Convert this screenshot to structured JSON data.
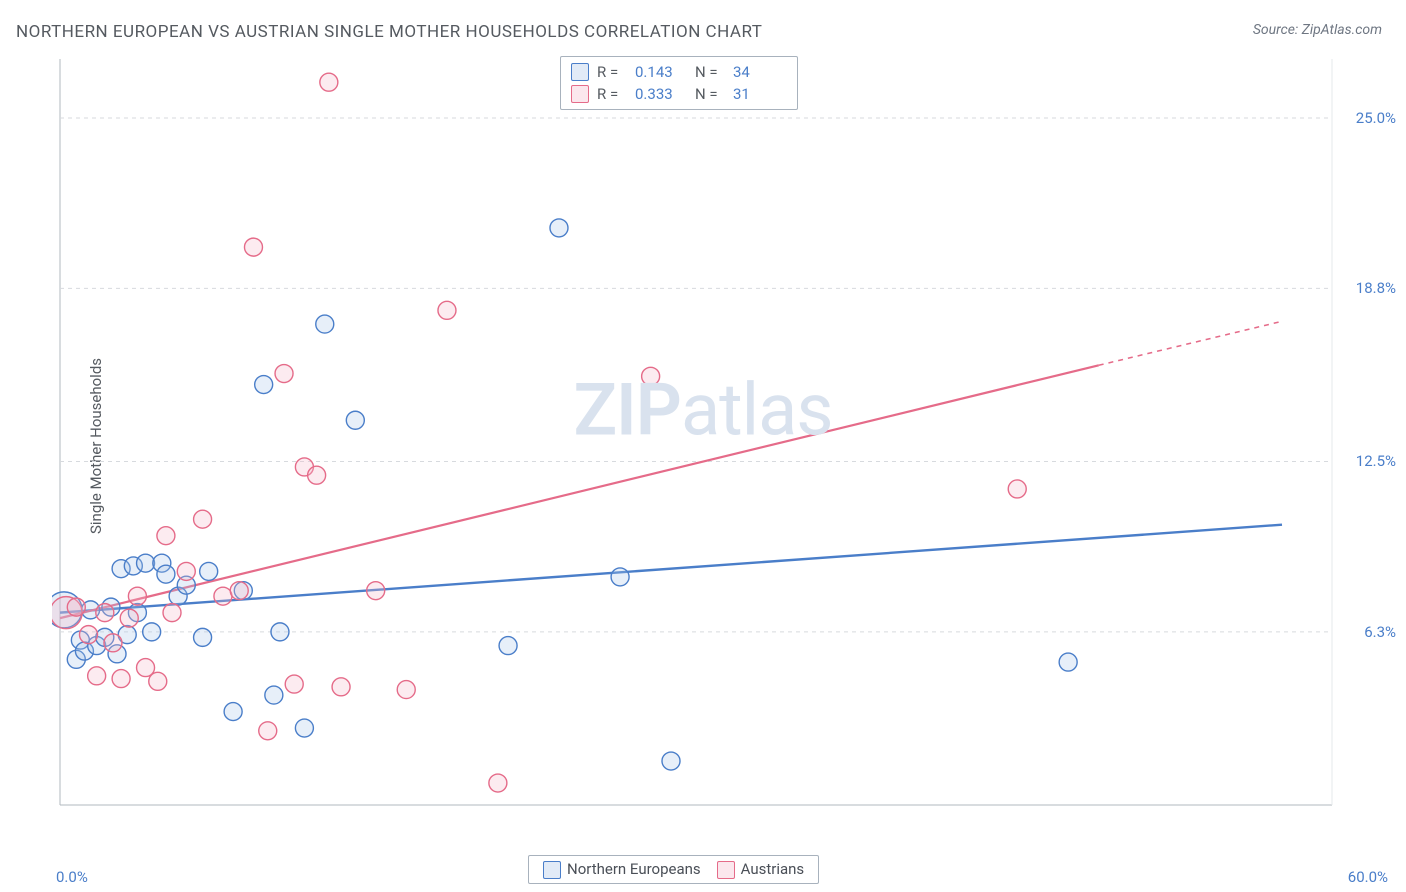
{
  "title": "NORTHERN EUROPEAN VS AUSTRIAN SINGLE MOTHER HOUSEHOLDS CORRELATION CHART",
  "source": "Source: ZipAtlas.com",
  "ylabel": "Single Mother Households",
  "watermark": {
    "bold": "ZIP",
    "rest": "atlas"
  },
  "chart": {
    "type": "scatter",
    "background_color": "#ffffff",
    "grid_color": "#d7dade",
    "axis_color": "#b2b8bf",
    "xlim": [
      0,
      60
    ],
    "ylim": [
      0,
      27
    ],
    "xticks": [
      {
        "value": 0,
        "label": "0.0%",
        "pos": "left"
      },
      {
        "value": 60,
        "label": "60.0%",
        "pos": "right"
      }
    ],
    "yticks": [
      {
        "value": 6.3,
        "label": "6.3%"
      },
      {
        "value": 12.5,
        "label": "12.5%"
      },
      {
        "value": 18.8,
        "label": "18.8%"
      },
      {
        "value": 25.0,
        "label": "25.0%"
      }
    ],
    "marker_radius": 9,
    "marker_fill_opacity": 0.28,
    "marker_stroke_width": 1.4,
    "series": [
      {
        "name": "Northern Europeans",
        "color_stroke": "#4a7ec9",
        "color_fill": "#a8c4e8",
        "r_value": "0.143",
        "n_value": "34",
        "trend": {
          "x1": 0,
          "y1": 7.0,
          "x2": 60,
          "y2": 10.2,
          "width": 2.4
        },
        "points": [
          [
            0.2,
            7.1,
            18
          ],
          [
            0.8,
            5.3
          ],
          [
            1.0,
            6.0
          ],
          [
            1.2,
            5.6
          ],
          [
            1.5,
            7.1
          ],
          [
            1.8,
            5.8
          ],
          [
            2.2,
            6.1
          ],
          [
            2.5,
            7.2
          ],
          [
            2.8,
            5.5
          ],
          [
            3.0,
            8.6
          ],
          [
            3.3,
            6.2
          ],
          [
            3.6,
            8.7
          ],
          [
            3.8,
            7.0
          ],
          [
            4.2,
            8.8
          ],
          [
            4.5,
            6.3
          ],
          [
            5.0,
            8.8
          ],
          [
            5.2,
            8.4
          ],
          [
            5.8,
            7.6
          ],
          [
            6.2,
            8.0
          ],
          [
            7.0,
            6.1
          ],
          [
            7.3,
            8.5
          ],
          [
            8.5,
            3.4
          ],
          [
            9.0,
            7.8
          ],
          [
            10.0,
            15.3
          ],
          [
            10.5,
            4.0
          ],
          [
            10.8,
            6.3
          ],
          [
            12.0,
            2.8
          ],
          [
            13.0,
            17.5
          ],
          [
            14.5,
            14.0
          ],
          [
            22.0,
            5.8
          ],
          [
            24.5,
            21.0
          ],
          [
            27.5,
            8.3
          ],
          [
            30.0,
            1.6
          ],
          [
            49.5,
            5.2
          ]
        ]
      },
      {
        "name": "Austrians",
        "color_stroke": "#e56b89",
        "color_fill": "#f3b8c8",
        "r_value": "0.333",
        "n_value": "31",
        "trend": {
          "x1": 0,
          "y1": 6.8,
          "x2": 51,
          "y2": 16.0,
          "dash_from": 51,
          "dash_to": 60,
          "dash_y2": 17.6,
          "width": 2.2
        },
        "points": [
          [
            0.3,
            7.0,
            16
          ],
          [
            0.8,
            7.2
          ],
          [
            1.4,
            6.2
          ],
          [
            1.8,
            4.7
          ],
          [
            2.2,
            7.0
          ],
          [
            2.6,
            5.9
          ],
          [
            3.0,
            4.6
          ],
          [
            3.4,
            6.8
          ],
          [
            3.8,
            7.6
          ],
          [
            4.2,
            5.0
          ],
          [
            4.8,
            4.5
          ],
          [
            5.2,
            9.8
          ],
          [
            5.5,
            7.0
          ],
          [
            6.2,
            8.5
          ],
          [
            7.0,
            10.4
          ],
          [
            8.0,
            7.6
          ],
          [
            8.8,
            7.8
          ],
          [
            9.5,
            20.3
          ],
          [
            10.2,
            2.7
          ],
          [
            11.0,
            15.7
          ],
          [
            11.5,
            4.4
          ],
          [
            12.0,
            12.3
          ],
          [
            12.6,
            12.0
          ],
          [
            13.2,
            26.3
          ],
          [
            13.8,
            4.3
          ],
          [
            15.5,
            7.8
          ],
          [
            17.0,
            4.2
          ],
          [
            19.0,
            18.0
          ],
          [
            21.5,
            0.8
          ],
          [
            29.0,
            15.6
          ],
          [
            47.0,
            11.5
          ]
        ]
      }
    ],
    "legend_bottom": [
      {
        "label": "Northern Europeans",
        "stroke": "#4a7ec9",
        "fill": "#a8c4e8"
      },
      {
        "label": "Austrians",
        "stroke": "#e56b89",
        "fill": "#f3b8c8"
      }
    ]
  }
}
